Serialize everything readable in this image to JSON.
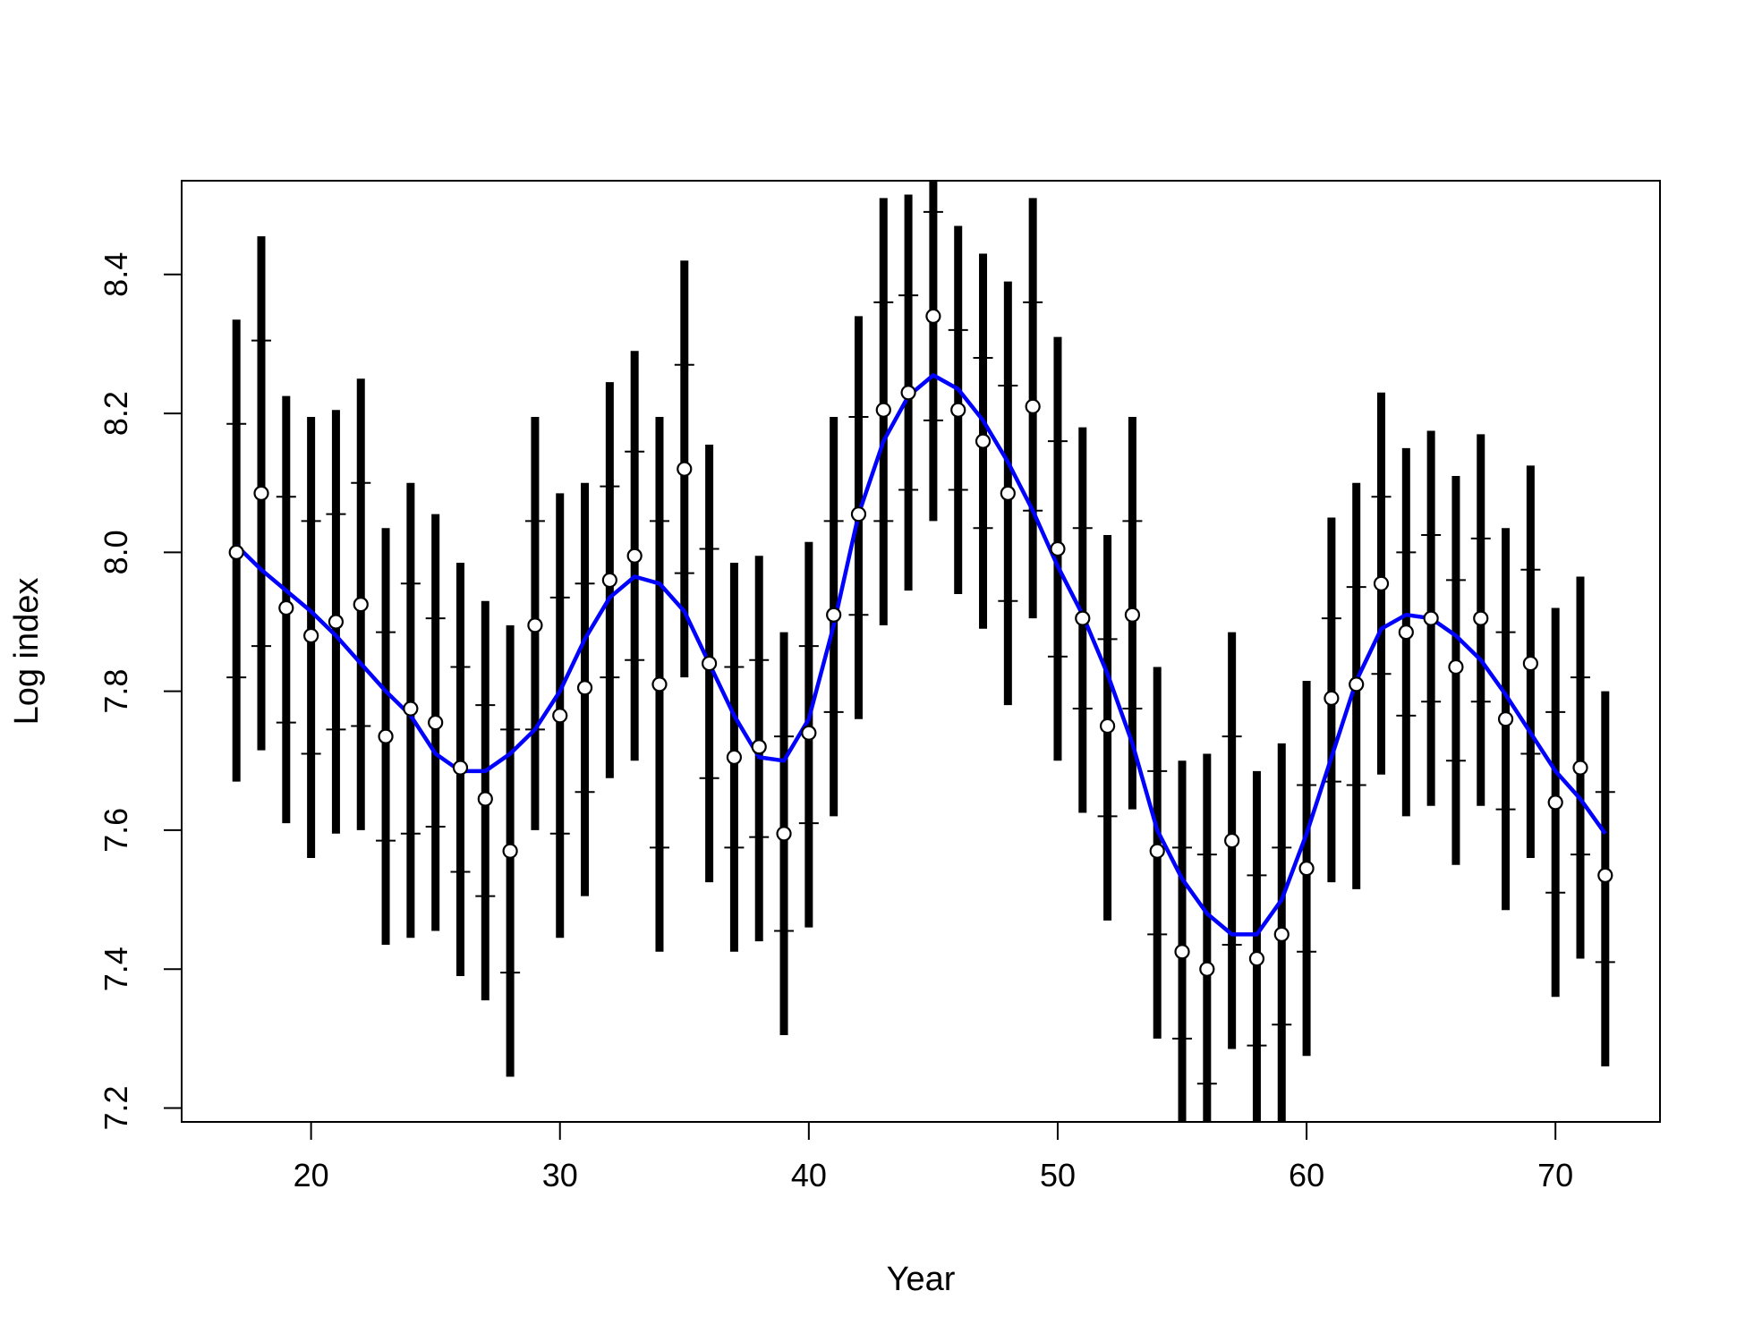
{
  "chart_data": {
    "type": "scatter",
    "title": "",
    "xlabel": "Year",
    "ylabel": "Log index",
    "xlim": [
      14.8,
      74.2
    ],
    "ylim": [
      7.18,
      8.535
    ],
    "x_ticks": [
      20,
      30,
      40,
      50,
      60,
      70
    ],
    "y_ticks": [
      7.2,
      7.4,
      7.6,
      7.8,
      8.0,
      8.2,
      8.4
    ],
    "x_tick_labels": [
      "20",
      "30",
      "40",
      "50",
      "60",
      "70"
    ],
    "y_tick_labels": [
      "7.2",
      "7.4",
      "7.6",
      "7.8",
      "8.0",
      "8.2",
      "8.4"
    ],
    "grid": false,
    "legend": "none",
    "series": [
      {
        "kind": "points_with_intervals",
        "color": "#000000",
        "x": [
          17,
          18,
          19,
          20,
          21,
          22,
          23,
          24,
          25,
          26,
          27,
          28,
          29,
          30,
          31,
          32,
          33,
          34,
          35,
          36,
          37,
          38,
          39,
          40,
          41,
          42,
          43,
          44,
          45,
          46,
          47,
          48,
          49,
          50,
          51,
          52,
          53,
          54,
          55,
          56,
          57,
          58,
          59,
          60,
          61,
          62,
          63,
          64,
          65,
          66,
          67,
          68,
          69,
          70,
          71,
          72
        ],
        "y": [
          8.0,
          8.085,
          7.92,
          7.88,
          7.9,
          7.925,
          7.735,
          7.775,
          7.755,
          7.69,
          7.645,
          7.57,
          7.895,
          7.765,
          7.805,
          7.96,
          7.995,
          7.81,
          8.12,
          7.84,
          7.705,
          7.72,
          7.595,
          7.74,
          7.91,
          8.055,
          8.205,
          8.23,
          8.34,
          8.205,
          8.16,
          8.085,
          8.21,
          8.005,
          7.905,
          7.75,
          7.91,
          7.57,
          7.425,
          7.4,
          7.585,
          7.415,
          7.45,
          7.545,
          7.79,
          7.81,
          7.955,
          7.885,
          7.905,
          7.835,
          7.905,
          7.76,
          7.84,
          7.64,
          7.69,
          7.535
        ],
        "lower": [
          7.67,
          7.715,
          7.61,
          7.56,
          7.595,
          7.6,
          7.435,
          7.445,
          7.455,
          7.39,
          7.355,
          7.245,
          7.6,
          7.445,
          7.505,
          7.675,
          7.7,
          7.425,
          7.82,
          7.525,
          7.425,
          7.44,
          7.305,
          7.46,
          7.62,
          7.76,
          7.895,
          7.945,
          8.045,
          7.94,
          7.89,
          7.78,
          7.905,
          7.7,
          7.625,
          7.47,
          7.63,
          7.3,
          7.1,
          7.1,
          7.285,
          7.1,
          7.12,
          7.275,
          7.525,
          7.515,
          7.68,
          7.62,
          7.635,
          7.55,
          7.635,
          7.485,
          7.56,
          7.36,
          7.415,
          7.26
        ],
        "upper": [
          8.335,
          8.455,
          8.225,
          8.195,
          8.205,
          8.25,
          8.035,
          8.1,
          8.055,
          7.985,
          7.93,
          7.895,
          8.195,
          8.085,
          8.1,
          8.245,
          8.29,
          8.195,
          8.42,
          8.155,
          7.985,
          7.995,
          7.885,
          8.015,
          8.195,
          8.34,
          8.51,
          8.515,
          8.6,
          8.47,
          8.43,
          8.39,
          8.51,
          8.31,
          8.18,
          8.025,
          8.195,
          7.835,
          7.7,
          7.71,
          7.885,
          7.685,
          7.725,
          7.815,
          8.05,
          8.1,
          8.23,
          8.15,
          8.175,
          8.11,
          8.17,
          8.035,
          8.125,
          7.92,
          7.965,
          7.8
        ],
        "inner_lower": [
          7.82,
          7.865,
          7.755,
          7.71,
          7.745,
          7.75,
          7.585,
          7.595,
          7.605,
          7.54,
          7.505,
          7.395,
          7.745,
          7.595,
          7.655,
          7.82,
          7.845,
          7.575,
          7.97,
          7.675,
          7.575,
          7.59,
          7.455,
          7.61,
          7.77,
          7.91,
          8.045,
          8.09,
          8.19,
          8.09,
          8.035,
          7.93,
          8.06,
          7.85,
          7.775,
          7.62,
          7.775,
          7.45,
          7.3,
          7.235,
          7.435,
          7.29,
          7.32,
          7.425,
          7.67,
          7.665,
          7.825,
          7.765,
          7.785,
          7.7,
          7.785,
          7.63,
          7.71,
          7.51,
          7.565,
          7.41
        ],
        "inner_upper": [
          8.185,
          8.305,
          8.08,
          8.045,
          8.055,
          8.1,
          7.885,
          7.955,
          7.905,
          7.835,
          7.78,
          7.745,
          8.045,
          7.935,
          7.955,
          8.095,
          8.145,
          8.045,
          8.27,
          8.005,
          7.835,
          7.845,
          7.735,
          7.865,
          8.045,
          8.195,
          8.36,
          8.37,
          8.49,
          8.32,
          8.28,
          8.24,
          8.36,
          8.16,
          8.035,
          7.875,
          8.045,
          7.685,
          7.575,
          7.565,
          7.735,
          7.535,
          7.575,
          7.665,
          7.905,
          7.95,
          8.08,
          8.0,
          8.025,
          7.96,
          8.02,
          7.885,
          7.975,
          7.77,
          7.82,
          7.655
        ]
      },
      {
        "kind": "line",
        "color": "#0000ff",
        "x": [
          17,
          18,
          19,
          20,
          21,
          22,
          23,
          24,
          25,
          26,
          27,
          28,
          29,
          30,
          31,
          32,
          33,
          34,
          35,
          36,
          37,
          38,
          39,
          40,
          41,
          42,
          43,
          44,
          45,
          46,
          47,
          48,
          49,
          50,
          51,
          52,
          53,
          54,
          55,
          56,
          57,
          58,
          59,
          60,
          61,
          62,
          63,
          64,
          65,
          66,
          67,
          68,
          69,
          70,
          71,
          72
        ],
        "y": [
          8.01,
          7.975,
          7.945,
          7.915,
          7.88,
          7.84,
          7.8,
          7.765,
          7.71,
          7.685,
          7.685,
          7.71,
          7.745,
          7.8,
          7.875,
          7.935,
          7.965,
          7.955,
          7.915,
          7.84,
          7.765,
          7.705,
          7.7,
          7.76,
          7.895,
          8.055,
          8.16,
          8.225,
          8.255,
          8.235,
          8.19,
          8.13,
          8.06,
          7.98,
          7.91,
          7.825,
          7.725,
          7.6,
          7.53,
          7.48,
          7.45,
          7.45,
          7.5,
          7.595,
          7.705,
          7.815,
          7.89,
          7.91,
          7.905,
          7.88,
          7.845,
          7.795,
          7.74,
          7.685,
          7.645,
          7.595
        ]
      }
    ]
  }
}
